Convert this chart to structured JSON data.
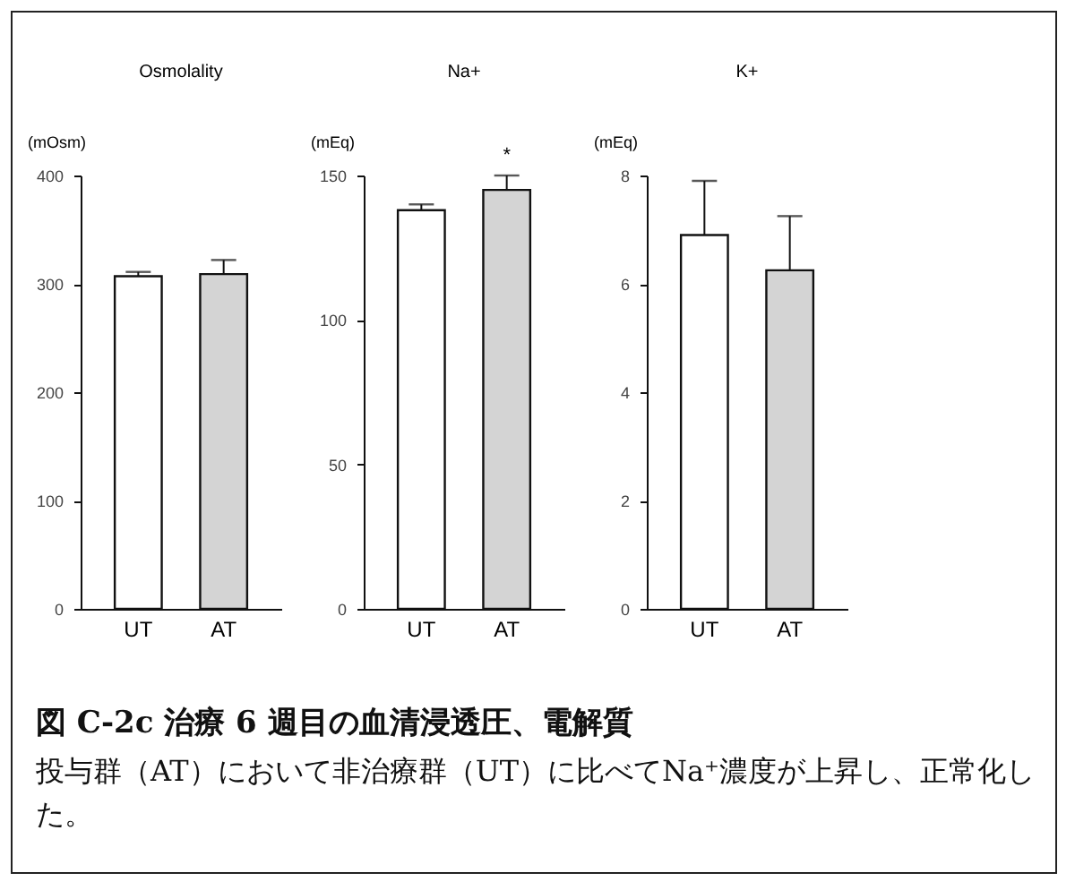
{
  "chart_data": [
    {
      "type": "bar",
      "title": "Osmolality",
      "ylabel": "(mOsm)",
      "categories": [
        "UT",
        "AT"
      ],
      "values": [
        307,
        309
      ],
      "errors": [
        [
          307,
          311
        ],
        [
          309,
          322
        ]
      ],
      "colors": [
        "#ffffff",
        "#d4d4d4"
      ],
      "ylim": [
        0,
        400
      ],
      "yticks": [
        0,
        100,
        200,
        300,
        400
      ],
      "grid": false,
      "legend": false
    },
    {
      "type": "bar",
      "title": "Na+",
      "ylabel": "(mEq)",
      "categories": [
        "UT",
        "AT"
      ],
      "values": [
        138,
        145
      ],
      "errors": [
        [
          138,
          140
        ],
        [
          145,
          150
        ]
      ],
      "colors": [
        "#ffffff",
        "#d4d4d4"
      ],
      "ylim": [
        0,
        150
      ],
      "yticks": [
        0,
        50,
        100,
        150
      ],
      "grid": false,
      "legend": false,
      "annotations": [
        {
          "text": "*",
          "x": "AT",
          "y": 150
        }
      ]
    },
    {
      "type": "bar",
      "title": "K+",
      "ylabel": "(mEq)",
      "categories": [
        "UT",
        "AT"
      ],
      "values": [
        6.9,
        6.25
      ],
      "errors": [
        [
          6.9,
          7.9
        ],
        [
          6.25,
          7.25
        ]
      ],
      "colors": [
        "#ffffff",
        "#d4d4d4"
      ],
      "ylim": [
        0,
        8
      ],
      "yticks": [
        0,
        2,
        4,
        6,
        8
      ],
      "grid": false,
      "legend": false
    },
    {
      "type": "other",
      "title": "図 C-2c 治療 6 週目の血清浸透圧、電解質",
      "annotations": [
        "投与群（AT）において非治療群（UT）に比べてNa⁺濃度が上昇し、正常化した。"
      ]
    }
  ]
}
